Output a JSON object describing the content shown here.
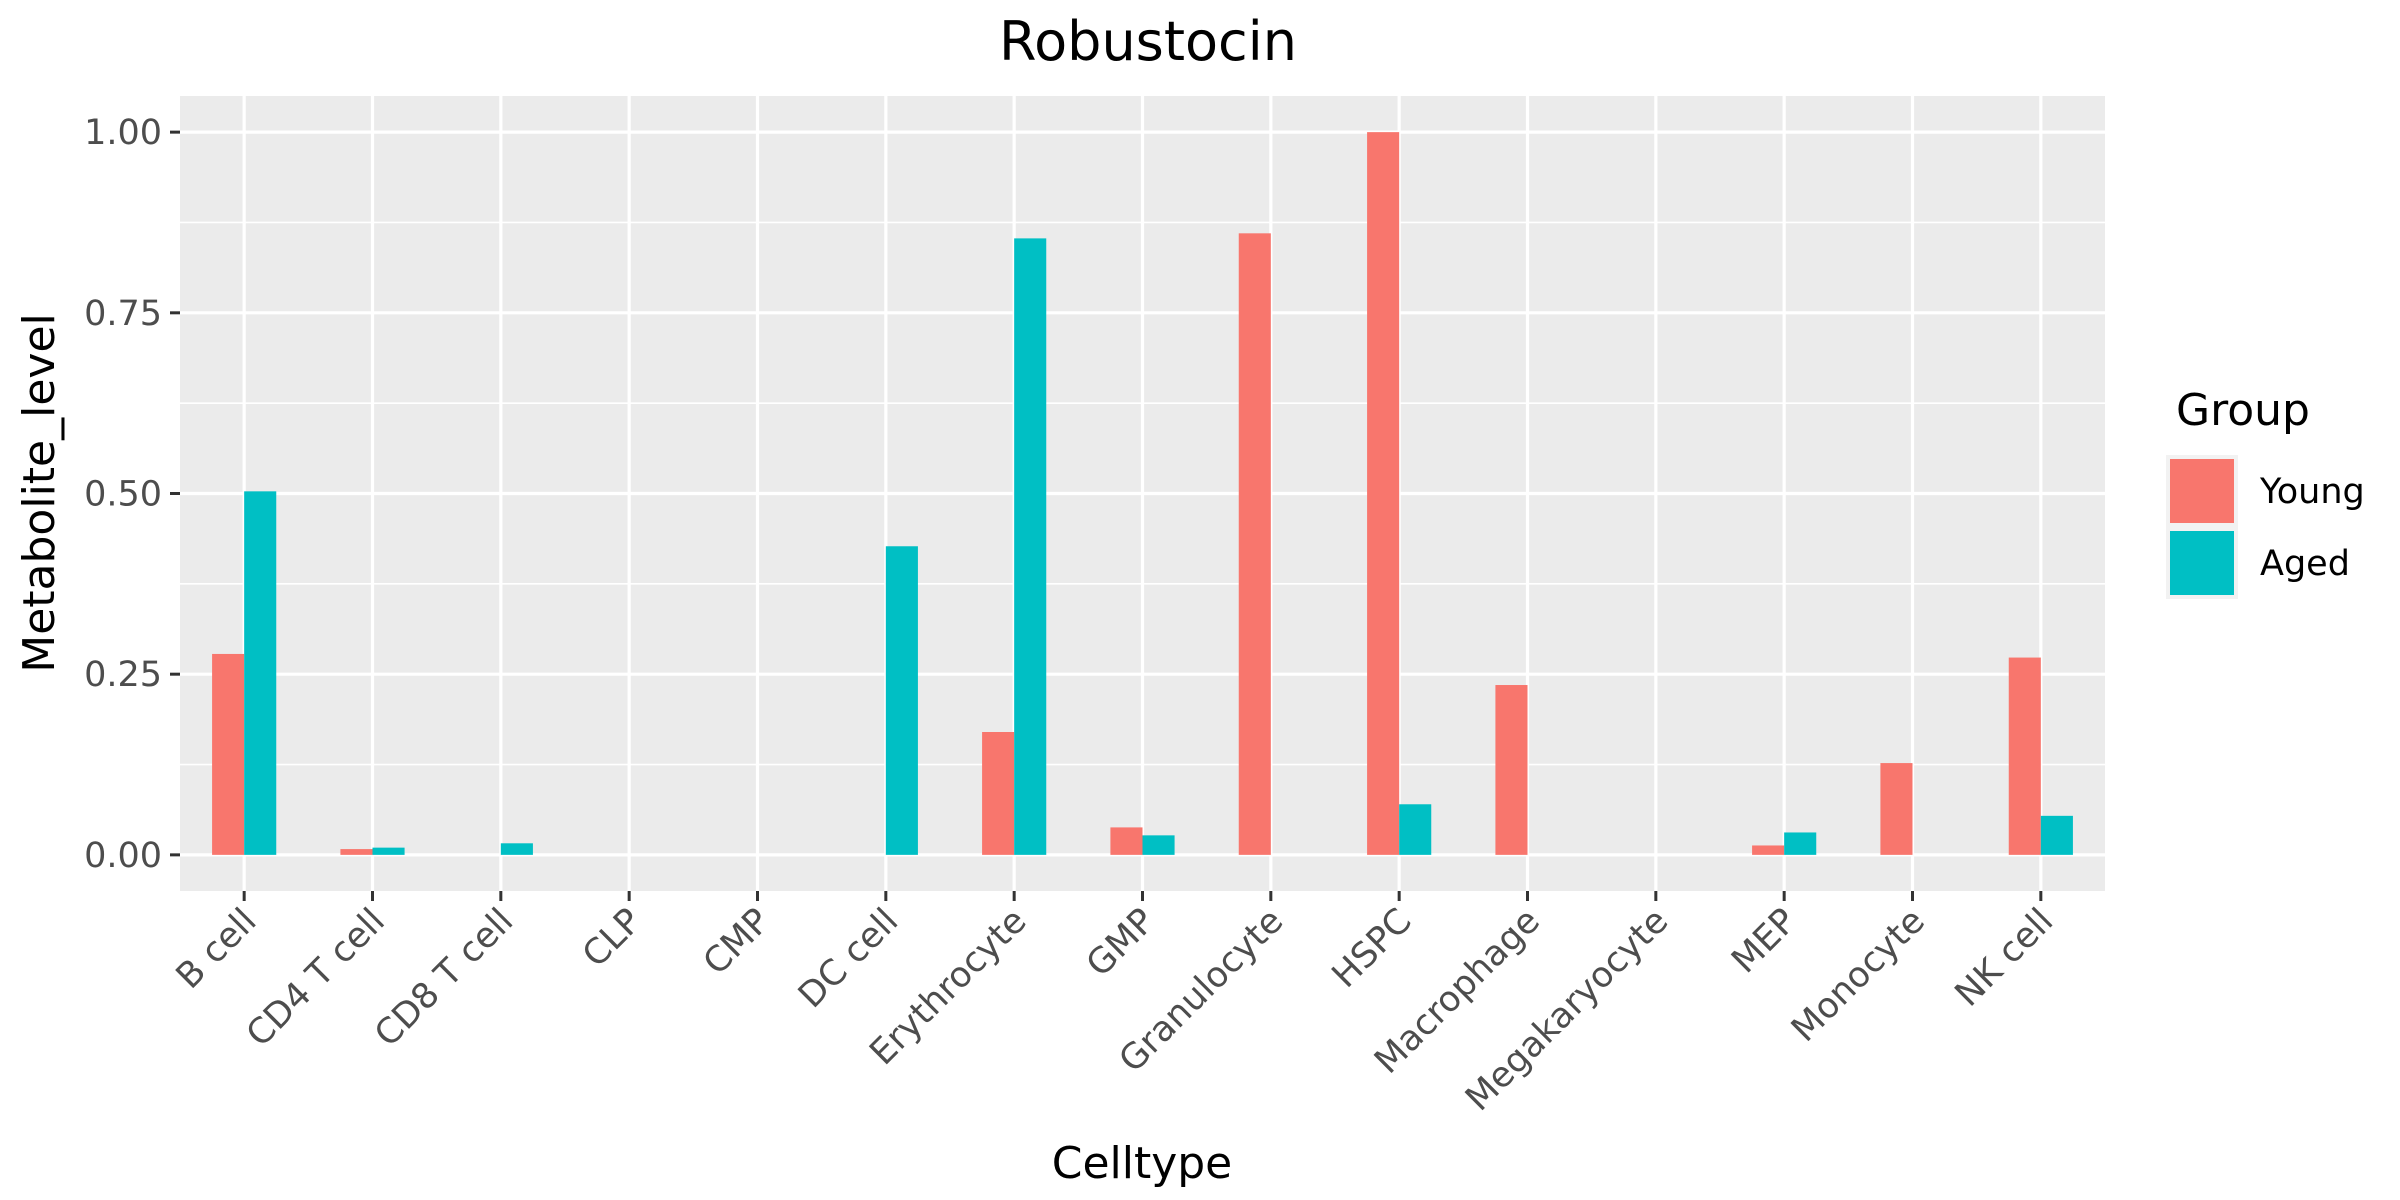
{
  "chart_data": {
    "type": "bar",
    "title": "Robustocin",
    "xlabel": "Celltype",
    "ylabel": "Metabolite_level",
    "categories": [
      "B cell",
      "CD4 T cell",
      "CD8 T cell",
      "CLP",
      "CMP",
      "DC cell",
      "Erythrocyte",
      "GMP",
      "Granulocyte",
      "HSPC",
      "Macrophage",
      "Megakaryocyte",
      "MEP",
      "Monocyte",
      "NK cell"
    ],
    "series": [
      {
        "name": "Young",
        "color": "#F8766D",
        "values": [
          0.278,
          0.008,
          0,
          0,
          0,
          0,
          0.17,
          0.038,
          0.86,
          1.0,
          0.235,
          0,
          0.013,
          0.127,
          0.273
        ]
      },
      {
        "name": "Aged",
        "color": "#00BFC4",
        "values": [
          0.503,
          0.01,
          0.016,
          0,
          0,
          0.427,
          0.853,
          0.027,
          0,
          0.07,
          0,
          0,
          0.031,
          0,
          0.054
        ]
      }
    ],
    "ylim": [
      -0.05,
      1.05
    ],
    "yticks": [
      0.0,
      0.25,
      0.5,
      0.75,
      1.0
    ],
    "ytick_labels": [
      "0.00",
      "0.25",
      "0.50",
      "0.75",
      "1.00"
    ],
    "legend": {
      "title": "Group",
      "position": "right"
    },
    "grid": true,
    "panel_background": "#EBEBEB"
  }
}
